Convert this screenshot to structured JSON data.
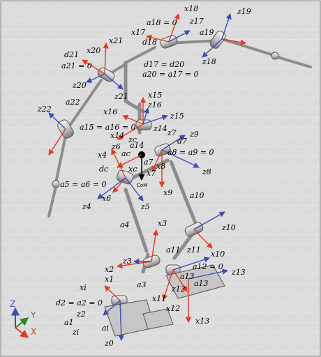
{
  "colors": {
    "background": "#dcdcdc",
    "grid": "#ececec",
    "x_axis": "#e53a1e",
    "y_axis": "#1f8a2a",
    "z_axis": "#3b4db8",
    "link": "#9a9a9a",
    "com": "#000000"
  },
  "triad": {
    "z": "Z",
    "y": "Y",
    "x": "X"
  },
  "labels": {
    "x18": "x18",
    "x17": "x17",
    "d18_eq": "a18 = 0",
    "z17": "z17",
    "a19": "a19",
    "z19": "z19",
    "d18": "d18",
    "z18": "z18",
    "x21": "x21",
    "x20": "x20",
    "d21": "d21",
    "a21_eq": "a21 = 0",
    "d17_eq": "d17 = d20",
    "a20_eq": "a20 = a17 = 0",
    "z20": "z20",
    "z21": "z21",
    "x15": "x15",
    "z16": "z16",
    "x16": "x16",
    "z15": "z15",
    "z22": "z22",
    "a22": "a22",
    "a15_eq": "a15 = a16 = 0",
    "z14": "z14",
    "x14": "x14",
    "z7": "z7",
    "z9": "z9",
    "d7": "d7",
    "zc": "zc",
    "a14": "a14",
    "z6": "z6",
    "x4": "x4",
    "ac": "ac",
    "a7": "a7",
    "a8_eq": "a8 = a9 = 0",
    "x8": "x8",
    "dc": "dc",
    "xc": "xc",
    "x7": "x7",
    "z8": "z8",
    "a5_eq": "a5 = a6 = 0",
    "com": "CoM",
    "x9": "x9",
    "x6": "x6",
    "z4": "z4",
    "z5": "z5",
    "a10": "a10",
    "a4": "a4",
    "x3": "x3",
    "z10": "z10",
    "z11": "z11",
    "a11": "a11",
    "z3": "z3",
    "x10": "x10",
    "a12_eq": "a12 = 0",
    "x2": "x2",
    "a13": "a13",
    "z13": "z13",
    "x1": "x1",
    "a3": "a3",
    "a13b": "a13",
    "z12": "z12",
    "xi": "xi",
    "x11": "x11",
    "d2_eq": "d2 = a2 = 0",
    "x12": "x12",
    "z2": "z2",
    "a1": "a1",
    "ai": "ai",
    "x13": "x13",
    "zi": "zi",
    "z0": "z0"
  }
}
